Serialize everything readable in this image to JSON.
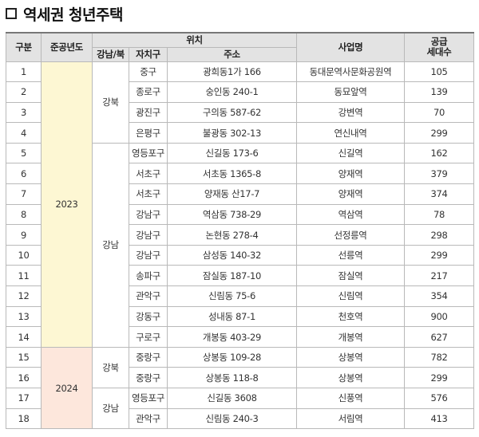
{
  "title": "역세권 청년주택",
  "headers": {
    "no": "구분",
    "year": "준공년도",
    "location": "위치",
    "region": "강남/북",
    "district": "자치구",
    "address": "주소",
    "project": "사업명",
    "units_line1": "공급",
    "units_line2": "세대수"
  },
  "years": {
    "y2023": "2023",
    "y2024": "2024"
  },
  "regions": {
    "north": "강북",
    "south": "강남"
  },
  "rows": [
    {
      "no": "1",
      "district": "중구",
      "address": "광희동1가 166",
      "project": "동대문역사문화공원역",
      "units": "105"
    },
    {
      "no": "2",
      "district": "종로구",
      "address": "숭인동 240-1",
      "project": "동묘앞역",
      "units": "139"
    },
    {
      "no": "3",
      "district": "광진구",
      "address": "구의동 587-62",
      "project": "강변역",
      "units": "70"
    },
    {
      "no": "4",
      "district": "은평구",
      "address": "불광동 302-13",
      "project": "연신내역",
      "units": "299"
    },
    {
      "no": "5",
      "district": "영등포구",
      "address": "신길동 173-6",
      "project": "신길역",
      "units": "162"
    },
    {
      "no": "6",
      "district": "서초구",
      "address": "서초동 1365-8",
      "project": "양재역",
      "units": "379"
    },
    {
      "no": "7",
      "district": "서초구",
      "address": "양재동 산17-7",
      "project": "양재역",
      "units": "374"
    },
    {
      "no": "8",
      "district": "강남구",
      "address": "역삼동 738-29",
      "project": "역삼역",
      "units": "78"
    },
    {
      "no": "9",
      "district": "강남구",
      "address": "논현동 278-4",
      "project": "선정릉역",
      "units": "298"
    },
    {
      "no": "10",
      "district": "강남구",
      "address": "삼성동 140-32",
      "project": "선릉역",
      "units": "299"
    },
    {
      "no": "11",
      "district": "송파구",
      "address": "잠실동 187-10",
      "project": "잠실역",
      "units": "217"
    },
    {
      "no": "12",
      "district": "관악구",
      "address": "신림동 75-6",
      "project": "신림역",
      "units": "354"
    },
    {
      "no": "13",
      "district": "강동구",
      "address": "성내동 87-1",
      "project": "천호역",
      "units": "900"
    },
    {
      "no": "14",
      "district": "구로구",
      "address": "개봉동 403-29",
      "project": "개봉역",
      "units": "627"
    },
    {
      "no": "15",
      "district": "중랑구",
      "address": "상봉동 109-28",
      "project": "상봉역",
      "units": "782"
    },
    {
      "no": "16",
      "district": "중랑구",
      "address": "상봉동 118-8",
      "project": "상봉역",
      "units": "299"
    },
    {
      "no": "17",
      "district": "영등포구",
      "address": "신길동 3608",
      "project": "신풍역",
      "units": "576"
    },
    {
      "no": "18",
      "district": "관악구",
      "address": "신림동 240-3",
      "project": "서림역",
      "units": "413"
    }
  ],
  "colors": {
    "header_bg": "#e3e3e3",
    "year_2023_bg": "#fdf7d3",
    "year_2024_bg": "#fde7dc",
    "border": "#b9b9b9"
  }
}
